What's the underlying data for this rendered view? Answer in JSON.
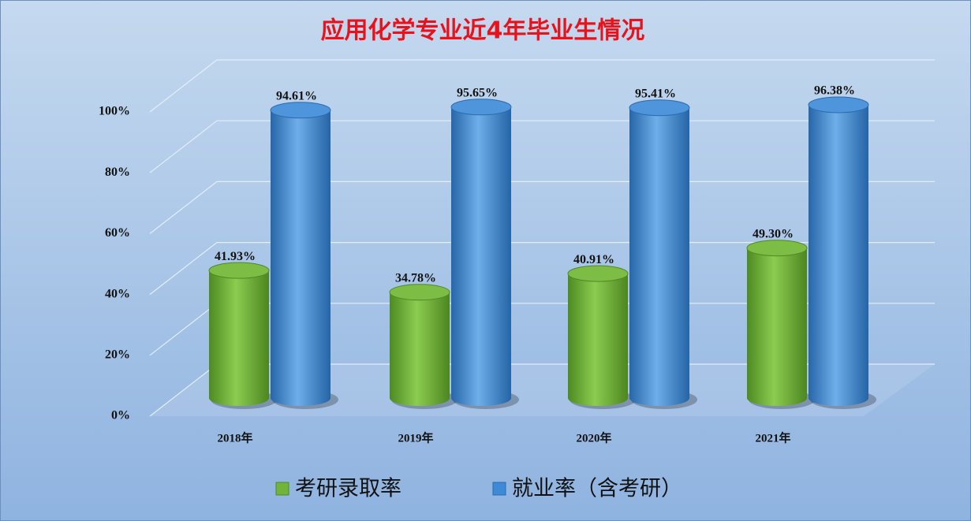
{
  "chart_data": {
    "type": "bar3d",
    "title": "应用化学专业近4年毕业生情况",
    "categories": [
      "2018年",
      "2019年",
      "2020年",
      "2021年"
    ],
    "series": [
      {
        "name": "考研录取率",
        "color": "#72b33a",
        "values": [
          41.93,
          34.78,
          40.91,
          49.3
        ],
        "value_labels": [
          "41.93%",
          "34.78%",
          "40.91%",
          "49.30%"
        ]
      },
      {
        "name": "就业率（含考研）",
        "color": "#3e8ad6",
        "values": [
          94.61,
          95.65,
          95.41,
          96.38
        ],
        "value_labels": [
          "94.61%",
          "95.65%",
          "95.41%",
          "96.38%"
        ]
      }
    ],
    "ylim": [
      0,
      100
    ],
    "yticks": [
      {
        "value": 0,
        "label": "0%"
      },
      {
        "value": 20,
        "label": "20%"
      },
      {
        "value": 40,
        "label": "40%"
      },
      {
        "value": 60,
        "label": "60%"
      },
      {
        "value": 80,
        "label": "80%"
      },
      {
        "value": 100,
        "label": "100%"
      }
    ],
    "grid": true,
    "legend": "bottom"
  }
}
